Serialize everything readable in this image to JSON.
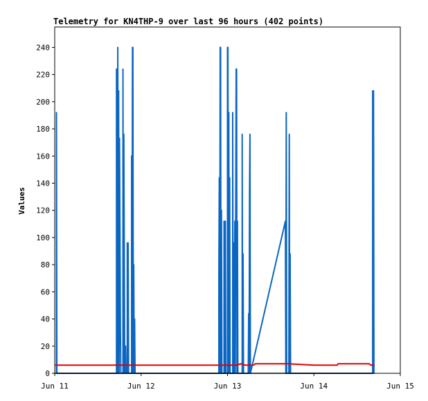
{
  "chart_data": {
    "type": "line",
    "title": "Telemetry for KN4THP-9 over last 96 hours (402 points)",
    "xlabel": "",
    "ylabel": "Values",
    "x_range": [
      "Jun 11",
      "Jun 15"
    ],
    "xlim_days": [
      0,
      4
    ],
    "ylim": [
      0,
      255
    ],
    "x_ticks": [
      "Jun 11",
      "Jun 12",
      "Jun 13",
      "Jun 14",
      "Jun 15"
    ],
    "y_ticks": [
      0,
      20,
      40,
      60,
      80,
      100,
      120,
      140,
      160,
      180,
      200,
      220,
      240
    ],
    "grid": false,
    "legend": "none",
    "series": [
      {
        "color": "#0b66c3",
        "points": [
          [
            0.02,
            0
          ],
          [
            0.02,
            192
          ],
          [
            0.025,
            0
          ],
          [
            0.715,
            0
          ],
          [
            0.715,
            224
          ],
          [
            0.72,
            120
          ],
          [
            0.725,
            0
          ],
          [
            0.73,
            240
          ],
          [
            0.735,
            0
          ],
          [
            0.74,
            208
          ],
          [
            0.745,
            0
          ],
          [
            0.75,
            173
          ],
          [
            0.755,
            105
          ],
          [
            0.76,
            35
          ],
          [
            0.765,
            0
          ],
          [
            0.79,
            0
          ],
          [
            0.79,
            224
          ],
          [
            0.795,
            0
          ],
          [
            0.8,
            176
          ],
          [
            0.805,
            88
          ],
          [
            0.81,
            0
          ],
          [
            0.82,
            20
          ],
          [
            0.825,
            0
          ],
          [
            0.84,
            0
          ],
          [
            0.84,
            96
          ],
          [
            0.845,
            20
          ],
          [
            0.85,
            96
          ],
          [
            0.855,
            0
          ],
          [
            0.89,
            0
          ],
          [
            0.89,
            160
          ],
          [
            0.895,
            0
          ],
          [
            0.9,
            240
          ],
          [
            0.905,
            240
          ],
          [
            0.91,
            0
          ],
          [
            0.915,
            80
          ],
          [
            0.92,
            0
          ],
          [
            0.925,
            40
          ],
          [
            0.93,
            0
          ],
          [
            1.9,
            0
          ],
          [
            1.9,
            72
          ],
          [
            1.905,
            144
          ],
          [
            1.91,
            0
          ],
          [
            1.915,
            240
          ],
          [
            1.92,
            240
          ],
          [
            1.925,
            0
          ],
          [
            1.93,
            120
          ],
          [
            1.935,
            0
          ],
          [
            1.96,
            0
          ],
          [
            1.96,
            112
          ],
          [
            1.965,
            0
          ],
          [
            1.97,
            0
          ],
          [
            1.975,
            112
          ],
          [
            1.98,
            0
          ],
          [
            2.0,
            0
          ],
          [
            2.0,
            240
          ],
          [
            2.005,
            240
          ],
          [
            2.01,
            0
          ],
          [
            2.015,
            192
          ],
          [
            2.02,
            0
          ],
          [
            2.025,
            144
          ],
          [
            2.03,
            0
          ],
          [
            2.06,
            0
          ],
          [
            2.06,
            192
          ],
          [
            2.065,
            0
          ],
          [
            2.07,
            96
          ],
          [
            2.075,
            0
          ],
          [
            2.085,
            112
          ],
          [
            2.09,
            0
          ],
          [
            2.1,
            224
          ],
          [
            2.105,
            224
          ],
          [
            2.11,
            0
          ],
          [
            2.115,
            112
          ],
          [
            2.12,
            0
          ],
          [
            2.17,
            0
          ],
          [
            2.17,
            176
          ],
          [
            2.175,
            0
          ],
          [
            2.18,
            88
          ],
          [
            2.185,
            0
          ],
          [
            2.24,
            0
          ],
          [
            2.245,
            44
          ],
          [
            2.25,
            0
          ],
          [
            2.255,
            132
          ],
          [
            2.26,
            176
          ],
          [
            2.265,
            0
          ],
          [
            2.67,
            112
          ],
          [
            2.675,
            0
          ],
          [
            2.68,
            192
          ],
          [
            2.685,
            0
          ],
          [
            2.71,
            0
          ],
          [
            2.715,
            176
          ],
          [
            2.72,
            0
          ],
          [
            2.725,
            88
          ],
          [
            2.73,
            0
          ],
          [
            3.68,
            0
          ],
          [
            3.68,
            208
          ],
          [
            3.685,
            104
          ],
          [
            3.69,
            208
          ],
          [
            3.695,
            0
          ]
        ]
      },
      {
        "color": "#e00000",
        "points": [
          [
            0,
            6
          ],
          [
            1.5,
            6
          ],
          [
            2.1,
            6
          ],
          [
            2.16,
            7
          ],
          [
            2.2,
            6
          ],
          [
            2.3,
            6
          ],
          [
            2.32,
            7
          ],
          [
            2.7,
            7
          ],
          [
            3.0,
            6
          ],
          [
            3.27,
            6
          ],
          [
            3.28,
            7
          ],
          [
            3.64,
            7
          ],
          [
            3.66,
            6
          ],
          [
            3.7,
            6
          ]
        ]
      },
      {
        "color": "#000000",
        "points": [
          [
            0,
            0
          ],
          [
            3.7,
            0
          ]
        ]
      }
    ]
  }
}
